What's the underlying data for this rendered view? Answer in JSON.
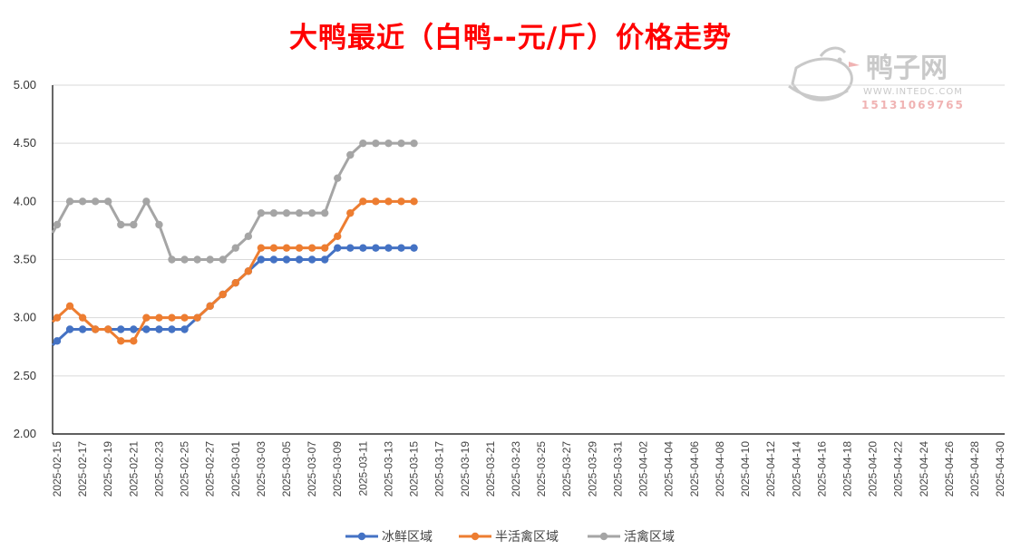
{
  "title": "大鸭最近（白鸭--元/斤）价格走势",
  "watermark": {
    "brand": "鸭子网",
    "url": "WWW.INTEDC.COM",
    "phone": "15131069765"
  },
  "colors": {
    "title": "#ff0000",
    "series_1": "#4472c4",
    "series_2": "#ed7d31",
    "series_3": "#a5a5a5",
    "grid": "#d9d9d9",
    "watermark": "#c9c9c9",
    "watermark_red": "#f0b3b3"
  },
  "chart_data": {
    "type": "line",
    "title": "大鸭最近（白鸭--元/斤）价格走势",
    "xlabel": "",
    "ylabel": "",
    "ylim": [
      2.0,
      5.0
    ],
    "y_ticks": [
      "2.00",
      "2.50",
      "3.00",
      "3.50",
      "4.00",
      "4.50",
      "5.00"
    ],
    "grid": true,
    "legend_position": "bottom",
    "x_range": [
      "2025-02-15",
      "2025-04-30"
    ],
    "x_tick_labels": [
      "2025-02-15",
      "2025-02-17",
      "2025-02-19",
      "2025-02-21",
      "2025-02-23",
      "2025-02-25",
      "2025-02-27",
      "2025-03-01",
      "2025-03-03",
      "2025-03-05",
      "2025-03-07",
      "2025-03-09",
      "2025-03-11",
      "2025-03-13",
      "2025-03-15",
      "2025-03-17",
      "2025-03-19",
      "2025-03-21",
      "2025-03-23",
      "2025-03-25",
      "2025-03-27",
      "2025-03-29",
      "2025-03-31",
      "2025-04-02",
      "2025-04-04",
      "2025-04-06",
      "2025-04-08",
      "2025-04-10",
      "2025-04-12",
      "2025-04-14",
      "2025-04-16",
      "2025-04-18",
      "2025-04-20",
      "2025-04-22",
      "2025-04-24",
      "2025-04-26",
      "2025-04-28",
      "2025-04-30"
    ],
    "dates": [
      "2025-02-15",
      "2025-02-16",
      "2025-02-17",
      "2025-02-18",
      "2025-02-19",
      "2025-02-20",
      "2025-02-21",
      "2025-02-22",
      "2025-02-23",
      "2025-02-24",
      "2025-02-25",
      "2025-02-26",
      "2025-02-27",
      "2025-02-28",
      "2025-03-01",
      "2025-03-02",
      "2025-03-03",
      "2025-03-04",
      "2025-03-05",
      "2025-03-06",
      "2025-03-07",
      "2025-03-08",
      "2025-03-09",
      "2025-03-10",
      "2025-03-11",
      "2025-03-12",
      "2025-03-13",
      "2025-03-14",
      "2025-03-15"
    ],
    "series": [
      {
        "name": "冰鲜区域",
        "values": [
          2.8,
          2.9,
          2.9,
          2.9,
          2.9,
          2.9,
          2.9,
          2.9,
          2.9,
          2.9,
          2.9,
          3.0,
          3.1,
          3.2,
          3.3,
          3.4,
          3.5,
          3.5,
          3.5,
          3.5,
          3.5,
          3.5,
          3.6,
          3.6,
          3.6,
          3.6,
          3.6,
          3.6,
          3.6
        ]
      },
      {
        "name": "半活禽区域",
        "values": [
          3.0,
          3.1,
          3.0,
          2.9,
          2.9,
          2.8,
          2.8,
          3.0,
          3.0,
          3.0,
          3.0,
          3.0,
          3.1,
          3.2,
          3.3,
          3.4,
          3.6,
          3.6,
          3.6,
          3.6,
          3.6,
          3.6,
          3.7,
          3.9,
          4.0,
          4.0,
          4.0,
          4.0,
          4.0
        ]
      },
      {
        "name": "活禽区域",
        "values": [
          3.8,
          4.0,
          4.0,
          4.0,
          4.0,
          3.8,
          3.8,
          4.0,
          3.8,
          3.5,
          3.5,
          3.5,
          3.5,
          3.5,
          3.6,
          3.7,
          3.9,
          3.9,
          3.9,
          3.9,
          3.9,
          3.9,
          4.2,
          4.4,
          4.5,
          4.5,
          4.5,
          4.5,
          4.5
        ]
      }
    ]
  }
}
